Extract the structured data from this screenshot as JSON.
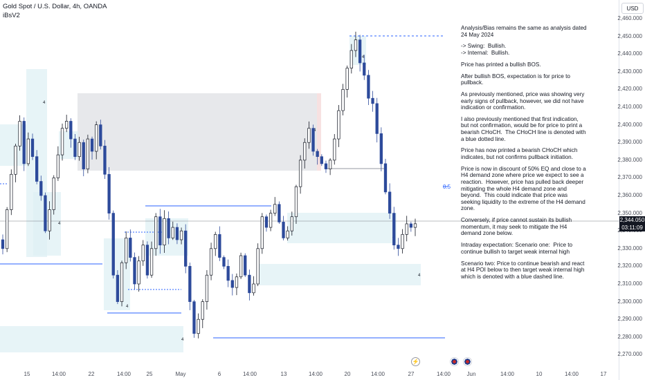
{
  "header": {
    "symbol": "Gold Spot / U.S. Dollar, 4h, OANDA",
    "indicator": "iBsV2"
  },
  "currency_button": "USD",
  "price_axis": [
    "2,460.000",
    "2,450.000",
    "2,440.000",
    "2,430.000",
    "2,420.000",
    "2,410.000",
    "2,400.000",
    "2,390.000",
    "2,380.000",
    "2,370.000",
    "2,360.000",
    "2,350.000",
    "2,340.000",
    "2,330.000",
    "2,320.000",
    "2,310.000",
    "2,300.000",
    "2,290.000",
    "2,280.000",
    "2,270.000"
  ],
  "time_axis": [
    "15",
    "14:00",
    "22",
    "14:00",
    "25",
    "May",
    "6",
    "14:00",
    "13",
    "14:00",
    "20",
    "14:00",
    "27",
    "14:00",
    "Jun",
    "14:00",
    "10",
    "14:00",
    "17"
  ],
  "last_price": {
    "value": "2,344.050",
    "countdown": "03:11:09"
  },
  "fib_label": "0.5",
  "box_marker": "4",
  "notes": [
    "Analysis/Bias remains the same as analysis dated 24 May 2024",
    "-> Swing:  Bullish.\n-> Internal:  Bullish.",
    "Price has printed a bullish BOS.",
    "After bullish BOS, expectation is for price to pullback.",
    "As previously mentioned, price was showing very early signs of pullback, however, we did not have indication or confirmation.",
    "I also previously mentioned that first indication, but not confirmation, would be for price to print a bearish CHoCH.  The CHoCH line is denoted with a blue dotted line.",
    "Price has now printed a bearish CHoCH which indicates, but not confirms pullback initiation.",
    "Price is now in discount of 50% EQ and close to a H4 demand zone where price we expect to see a reaction.  However, price has pulled back deeper mitigating the whole H4 demand zone and beyond.  This could indicate that price was seeking liquidity to the extreme of the H4 demand zone.",
    "Conversely, if price cannot sustain its bullish momentum, it may seek to mitigate the H4 demand zone below.",
    "Intraday expectation: Scenario one:  Price to continue bullish to target weak internal high",
    "Scenario two: Price to continue bearish and react at H4 POI below to then target weak internal high which is denoted with a blue dashed line."
  ],
  "colors": {
    "bull": "#131722",
    "bear": "#2d4a9b",
    "demand": "#dff0f4",
    "supply": "#e3e4e8",
    "line": "#2962ff"
  },
  "chart_data": {
    "type": "candlestick",
    "ylim": [
      2265,
      2468
    ],
    "price_ticks": [
      2460,
      2450,
      2440,
      2430,
      2420,
      2410,
      2400,
      2390,
      2380,
      2370,
      2360,
      2350,
      2340,
      2330,
      2320,
      2310,
      2300,
      2290,
      2280,
      2270
    ],
    "time_ticks": [
      "15",
      "14:00",
      "22",
      "14:00",
      "25",
      "May",
      "6",
      "14:00",
      "13",
      "14:00",
      "20",
      "14:00",
      "27",
      "14:00",
      "Jun",
      "14:00",
      "10",
      "14:00",
      "17"
    ],
    "last": 2344.05,
    "path": [
      2335,
      2330,
      2352,
      2372,
      2388,
      2402,
      2378,
      2392,
      2382,
      2368,
      2360,
      2340,
      2352,
      2370,
      2383,
      2398,
      2402,
      2392,
      2382,
      2390,
      2375,
      2392,
      2385,
      2400,
      2388,
      2372,
      2350,
      2315,
      2300,
      2322,
      2336,
      2325,
      2310,
      2323,
      2332,
      2315,
      2330,
      2348,
      2332,
      2347,
      2336,
      2342,
      2335,
      2340,
      2320,
      2300,
      2282,
      2290,
      2300,
      2315,
      2330,
      2338,
      2325,
      2320,
      2312,
      2308,
      2314,
      2326,
      2315,
      2305,
      2310,
      2330,
      2348,
      2342,
      2350,
      2355,
      2345,
      2336,
      2340,
      2348,
      2365,
      2380,
      2390,
      2398,
      2385,
      2382,
      2378,
      2375,
      2380,
      2392,
      2408,
      2420,
      2432,
      2442,
      2448,
      2435,
      2428,
      2415,
      2412,
      2395,
      2378,
      2362,
      2350,
      2332,
      2330,
      2338,
      2344,
      2342,
      2344.05
    ]
  }
}
